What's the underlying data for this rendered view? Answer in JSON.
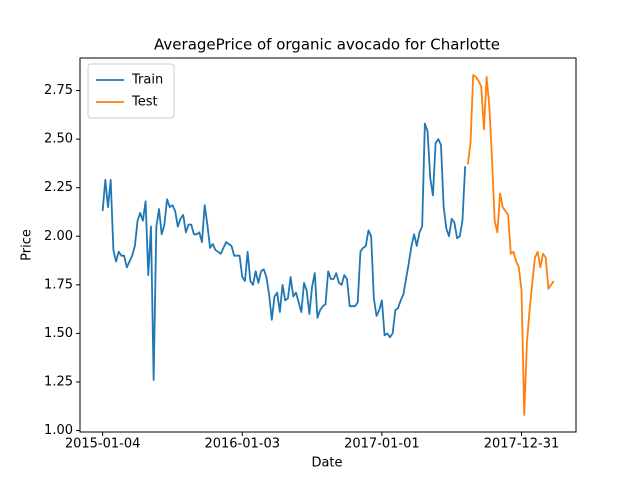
{
  "chart_data": {
    "type": "line",
    "title": "AveragePrice of organic avocado for Charlotte",
    "xlabel": "Date",
    "ylabel": "Price",
    "series": [
      {
        "name": "Train",
        "color": "#1f77b4",
        "x": [
          "2015-01-04",
          "2015-01-11",
          "2015-01-18",
          "2015-01-25",
          "2015-02-01",
          "2015-02-08",
          "2015-02-15",
          "2015-02-22",
          "2015-03-01",
          "2015-03-08",
          "2015-03-15",
          "2015-03-22",
          "2015-03-29",
          "2015-04-05",
          "2015-04-12",
          "2015-04-19",
          "2015-04-26",
          "2015-05-03",
          "2015-05-10",
          "2015-05-17",
          "2015-05-24",
          "2015-05-31",
          "2015-06-07",
          "2015-06-14",
          "2015-06-21",
          "2015-06-28",
          "2015-07-05",
          "2015-07-12",
          "2015-07-19",
          "2015-07-26",
          "2015-08-02",
          "2015-08-09",
          "2015-08-16",
          "2015-08-23",
          "2015-08-30",
          "2015-09-06",
          "2015-09-13",
          "2015-09-20",
          "2015-09-27",
          "2015-10-04",
          "2015-10-11",
          "2015-10-18",
          "2015-10-25",
          "2015-11-01",
          "2015-11-08",
          "2015-11-15",
          "2015-11-22",
          "2015-11-29",
          "2015-12-06",
          "2015-12-13",
          "2015-12-20",
          "2015-12-27",
          "2016-01-03",
          "2016-01-10",
          "2016-01-17",
          "2016-01-24",
          "2016-01-31",
          "2016-02-07",
          "2016-02-14",
          "2016-02-21",
          "2016-02-28",
          "2016-03-06",
          "2016-03-13",
          "2016-03-20",
          "2016-03-27",
          "2016-04-03",
          "2016-04-10",
          "2016-04-17",
          "2016-04-24",
          "2016-05-01",
          "2016-05-08",
          "2016-05-15",
          "2016-05-22",
          "2016-05-29",
          "2016-06-05",
          "2016-06-12",
          "2016-06-19",
          "2016-06-26",
          "2016-07-03",
          "2016-07-10",
          "2016-07-17",
          "2016-07-24",
          "2016-07-31",
          "2016-08-07",
          "2016-08-14",
          "2016-08-21",
          "2016-08-28",
          "2016-09-04",
          "2016-09-11",
          "2016-09-18",
          "2016-09-25",
          "2016-10-02",
          "2016-10-09",
          "2016-10-16",
          "2016-10-23",
          "2016-10-30",
          "2016-11-06",
          "2016-11-13",
          "2016-11-20",
          "2016-11-27",
          "2016-12-04",
          "2016-12-11",
          "2016-12-18",
          "2016-12-25",
          "2017-01-01",
          "2017-01-08",
          "2017-01-15",
          "2017-01-22",
          "2017-01-29",
          "2017-02-05",
          "2017-02-12",
          "2017-02-19",
          "2017-02-26",
          "2017-03-05",
          "2017-03-12",
          "2017-03-19",
          "2017-03-26",
          "2017-04-02",
          "2017-04-09",
          "2017-04-16",
          "2017-04-23",
          "2017-04-30",
          "2017-05-07",
          "2017-05-14",
          "2017-05-21",
          "2017-05-28",
          "2017-06-04",
          "2017-06-11",
          "2017-06-18",
          "2017-06-25",
          "2017-07-02",
          "2017-07-09",
          "2017-07-16",
          "2017-07-23",
          "2017-07-30",
          "2017-08-06"
        ],
        "values": [
          2.13,
          2.29,
          2.15,
          2.29,
          1.93,
          1.87,
          1.92,
          1.9,
          1.9,
          1.84,
          1.87,
          1.9,
          1.95,
          2.08,
          2.12,
          2.08,
          2.18,
          1.8,
          2.05,
          1.26,
          2.05,
          2.14,
          2.01,
          2.06,
          2.19,
          2.15,
          2.16,
          2.13,
          2.05,
          2.09,
          2.11,
          2.02,
          2.06,
          2.06,
          2.01,
          2.01,
          2.02,
          1.97,
          2.16,
          2.06,
          1.94,
          1.96,
          1.93,
          1.92,
          1.91,
          1.94,
          1.97,
          1.96,
          1.95,
          1.9,
          1.9,
          1.9,
          1.79,
          1.77,
          1.92,
          1.77,
          1.75,
          1.82,
          1.76,
          1.82,
          1.83,
          1.79,
          1.7,
          1.57,
          1.69,
          1.71,
          1.61,
          1.75,
          1.67,
          1.68,
          1.79,
          1.69,
          1.71,
          1.66,
          1.61,
          1.76,
          1.72,
          1.6,
          1.74,
          1.81,
          1.58,
          1.62,
          1.64,
          1.65,
          1.82,
          1.78,
          1.78,
          1.81,
          1.76,
          1.75,
          1.8,
          1.78,
          1.64,
          1.64,
          1.64,
          1.66,
          1.92,
          1.94,
          1.95,
          2.03,
          2.0,
          1.68,
          1.59,
          1.62,
          1.67,
          1.49,
          1.5,
          1.48,
          1.5,
          1.62,
          1.63,
          1.67,
          1.7,
          1.78,
          1.86,
          1.95,
          2.01,
          1.95,
          2.02,
          2.05,
          2.58,
          2.54,
          2.3,
          2.21,
          2.48,
          2.5,
          2.47,
          2.15,
          2.04,
          2.0,
          2.09,
          2.07,
          1.99,
          2.0,
          2.08,
          2.36
        ]
      },
      {
        "name": "Test",
        "color": "#ff7f0e",
        "x": [
          "2017-08-13",
          "2017-08-20",
          "2017-08-27",
          "2017-09-03",
          "2017-09-10",
          "2017-09-17",
          "2017-09-24",
          "2017-10-01",
          "2017-10-08",
          "2017-10-15",
          "2017-10-22",
          "2017-10-29",
          "2017-11-05",
          "2017-11-12",
          "2017-11-19",
          "2017-11-26",
          "2017-12-03",
          "2017-12-10",
          "2017-12-17",
          "2017-12-24",
          "2017-12-31",
          "2018-01-07",
          "2018-01-14",
          "2018-01-21",
          "2018-01-28",
          "2018-02-04",
          "2018-02-11",
          "2018-02-18",
          "2018-02-25",
          "2018-03-04",
          "2018-03-11",
          "2018-03-18",
          "2018-03-25"
        ],
        "values": [
          2.37,
          2.48,
          2.83,
          2.82,
          2.8,
          2.77,
          2.55,
          2.82,
          2.67,
          2.4,
          2.08,
          2.02,
          2.22,
          2.15,
          2.13,
          2.11,
          1.91,
          1.92,
          1.87,
          1.84,
          1.72,
          1.08,
          1.45,
          1.62,
          1.76,
          1.89,
          1.92,
          1.84,
          1.91,
          1.89,
          1.73,
          1.75,
          1.77
        ]
      }
    ],
    "xlim": [
      "2014-11-06",
      "2018-05-22"
    ],
    "xticks": [
      "2015-01-04",
      "2016-01-03",
      "2017-01-01",
      "2017-12-31"
    ],
    "ylim": [
      0.9925,
      2.9175
    ],
    "yticks": [
      {
        "value": 1,
        "label": "1.00"
      },
      {
        "value": 1.25,
        "label": "1.25"
      },
      {
        "value": 1.5,
        "label": "1.50"
      },
      {
        "value": 1.75,
        "label": "1.75"
      },
      {
        "value": 2,
        "label": "2.00"
      },
      {
        "value": 2.25,
        "label": "2.25"
      },
      {
        "value": 2.5,
        "label": "2.50"
      },
      {
        "value": 2.75,
        "label": "2.75"
      }
    ],
    "grid": false,
    "legend": "upper left"
  }
}
